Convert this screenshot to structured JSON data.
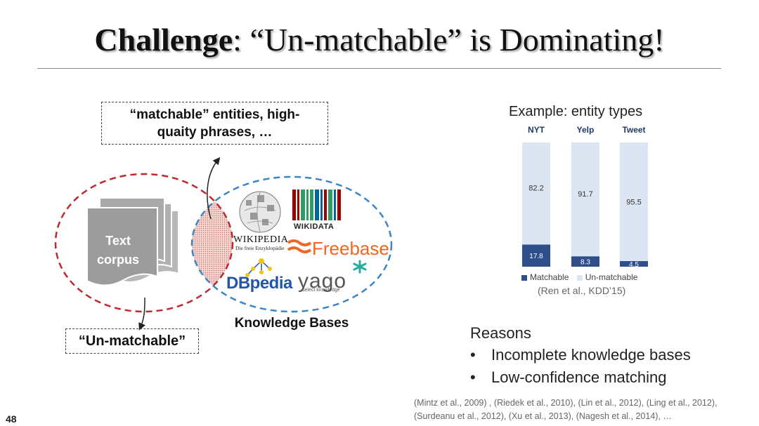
{
  "title": {
    "bold_part": "Challenge",
    "rest": ": “Un-matchable” is Dominating!"
  },
  "diagram": {
    "matchable_box": {
      "line1": "“matchable” entities, high-",
      "line2": "quaity phrases, …"
    },
    "text_corpus": {
      "line1": "Text",
      "line2": "corpus"
    },
    "unmatchable_box": "“Un-matchable”",
    "knowledge_bases_label": "Knowledge Bases",
    "logos": {
      "wikipedia": "WIKIPEDIA",
      "wikipedia_sub": "Die freie Enzyklopädie",
      "wikidata": "WIKIDATA",
      "freebase": "Freebase",
      "dbpedia": "DBpedia",
      "yago": "yago",
      "yago_sub": "select knowledge"
    },
    "colors": {
      "corpus_circle": "#c0282d",
      "kb_circle": "#3b86c6"
    }
  },
  "chart_title": "Example: entity types",
  "chart_data": {
    "type": "bar",
    "stacked": true,
    "categories": [
      "NYT",
      "Yelp",
      "Tweet"
    ],
    "series": [
      {
        "name": "Matchable",
        "values": [
          17.8,
          8.3,
          4.5
        ],
        "color": "#2e4e8c"
      },
      {
        "name": "Un-matchable",
        "values": [
          82.2,
          91.7,
          95.5
        ],
        "color": "#dce6f2"
      }
    ],
    "value_labels": {
      "matchable": [
        "17.8",
        "8.3",
        "4.5"
      ],
      "unmatchable": [
        "82.2",
        "91.7",
        "95.5"
      ]
    },
    "ylim": [
      0,
      100
    ],
    "legend_position": "bottom",
    "legend_labels": [
      "Matchable",
      "Un-matchable"
    ]
  },
  "chart_citation": "(Ren et al., KDD’15)",
  "reasons": {
    "heading": "Reasons",
    "bullet": "•",
    "items": [
      "Incomplete knowledge bases",
      "Low-confidence matching"
    ]
  },
  "references": {
    "line1": "(Mintz et al., 2009) , (Riedek et al., 2010), (Lin et al., 2012),  (Ling et al., 2012),",
    "line2": "(Surdeanu et al., 2012), (Xu et al., 2013), (Nagesh et al., 2014), …"
  },
  "page_number": "48"
}
